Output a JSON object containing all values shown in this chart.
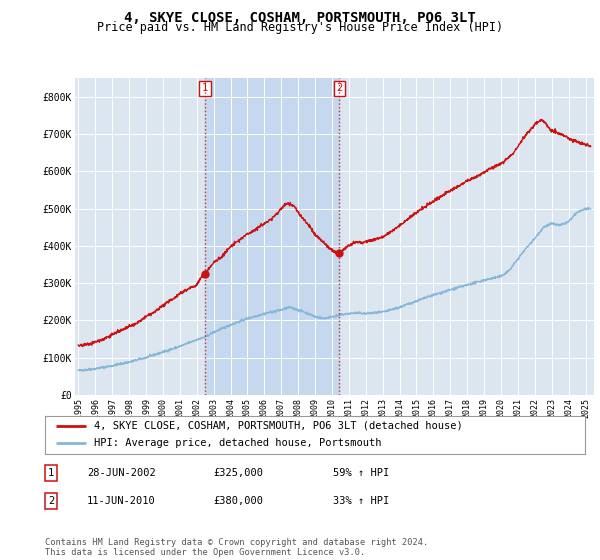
{
  "title": "4, SKYE CLOSE, COSHAM, PORTSMOUTH, PO6 3LT",
  "subtitle": "Price paid vs. HM Land Registry's House Price Index (HPI)",
  "title_fontsize": 10,
  "subtitle_fontsize": 8.5,
  "background_color": "#ffffff",
  "plot_bg_color": "#dce6f0",
  "shade_color": "#c5d8ee",
  "grid_color": "#ffffff",
  "hpi_color": "#85b8d8",
  "price_color": "#cc1111",
  "sale1_date": 2002.49,
  "sale1_price": 325000,
  "sale2_date": 2010.44,
  "sale2_price": 380000,
  "vline_color": "#cc1111",
  "ylim": [
    0,
    850000
  ],
  "xlim_start": 1994.8,
  "xlim_end": 2025.5,
  "yticks": [
    0,
    100000,
    200000,
    300000,
    400000,
    500000,
    600000,
    700000,
    800000
  ],
  "ytick_labels": [
    "£0",
    "£100K",
    "£200K",
    "£300K",
    "£400K",
    "£500K",
    "£600K",
    "£700K",
    "£800K"
  ],
  "xtick_vals": [
    1995,
    1996,
    1997,
    1998,
    1999,
    2000,
    2001,
    2002,
    2003,
    2004,
    2005,
    2006,
    2007,
    2008,
    2009,
    2010,
    2011,
    2012,
    2013,
    2014,
    2015,
    2016,
    2017,
    2018,
    2019,
    2020,
    2021,
    2022,
    2023,
    2024,
    2025
  ],
  "xtick_labels": [
    "1995",
    "1996",
    "1997",
    "1998",
    "1999",
    "2000",
    "2001",
    "2002",
    "2003",
    "2004",
    "2005",
    "2006",
    "2007",
    "2008",
    "2009",
    "2010",
    "2011",
    "2012",
    "2013",
    "2014",
    "2015",
    "2016",
    "2017",
    "2018",
    "2019",
    "2020",
    "2021",
    "2022",
    "2023",
    "2024",
    "2025"
  ],
  "legend_items": [
    {
      "label": "4, SKYE CLOSE, COSHAM, PORTSMOUTH, PO6 3LT (detached house)",
      "color": "#cc1111"
    },
    {
      "label": "HPI: Average price, detached house, Portsmouth",
      "color": "#85b8d8"
    }
  ],
  "table_rows": [
    {
      "num": "1",
      "date": "28-JUN-2002",
      "price": "£325,000",
      "change": "59% ↑ HPI"
    },
    {
      "num": "2",
      "date": "11-JUN-2010",
      "price": "£380,000",
      "change": "33% ↑ HPI"
    }
  ],
  "footnote": "Contains HM Land Registry data © Crown copyright and database right 2024.\nThis data is licensed under the Open Government Licence v3.0."
}
